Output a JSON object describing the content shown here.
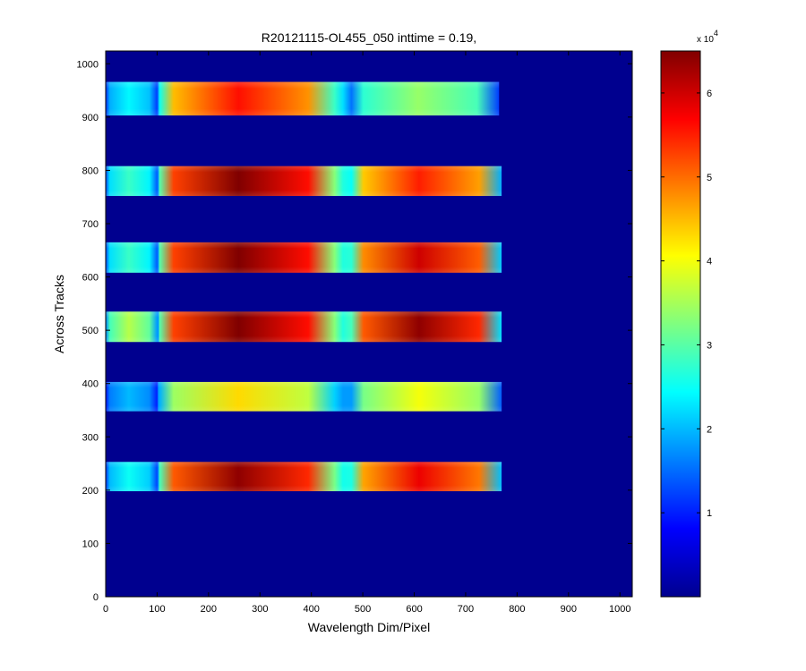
{
  "chart_data": {
    "type": "heatmap",
    "title": "R20121115-OL455_050 inttime = 0.19,",
    "xlabel": "Wavelength Dim/Pixel",
    "ylabel": "Across Tracks",
    "xlim": [
      0,
      1024
    ],
    "ylim": [
      0,
      1024
    ],
    "x_ticks": [
      "0",
      "100",
      "200",
      "300",
      "400",
      "500",
      "600",
      "700",
      "800",
      "900",
      "1000"
    ],
    "y_ticks": [
      "0",
      "100",
      "200",
      "300",
      "400",
      "500",
      "600",
      "700",
      "800",
      "900",
      "1000"
    ],
    "colorbar": {
      "colormap": "jet",
      "range": [
        0,
        65000
      ],
      "ticks": [
        "1",
        "2",
        "3",
        "4",
        "5",
        "6"
      ],
      "exponent_base": "x 10",
      "exponent": "4"
    },
    "background_value": 0,
    "stripes": [
      {
        "y_range": [
          198,
          253
        ],
        "x_range": [
          0,
          770
        ],
        "segments": [
          {
            "x_range": [
              0,
              100
            ],
            "peak": 25000
          },
          {
            "x_range": [
              105,
              445
            ],
            "peak": 64000
          },
          {
            "x_range": [
              478,
              770
            ],
            "peak": 58000
          }
        ]
      },
      {
        "y_range": [
          348,
          403
        ],
        "x_range": [
          0,
          770
        ],
        "segments": [
          {
            "x_range": [
              0,
              100
            ],
            "peak": 20000
          },
          {
            "x_range": [
              105,
              445
            ],
            "peak": 43000
          },
          {
            "x_range": [
              478,
              770
            ],
            "peak": 40000
          }
        ]
      },
      {
        "y_range": [
          478,
          535
        ],
        "x_range": [
          0,
          770
        ],
        "segments": [
          {
            "x_range": [
              0,
              100
            ],
            "peak": 36000
          },
          {
            "x_range": [
              105,
              445
            ],
            "peak": 66000
          },
          {
            "x_range": [
              478,
              770
            ],
            "peak": 64000
          }
        ]
      },
      {
        "y_range": [
          608,
          665
        ],
        "x_range": [
          0,
          770
        ],
        "segments": [
          {
            "x_range": [
              0,
              100
            ],
            "peak": 28000
          },
          {
            "x_range": [
              105,
              445
            ],
            "peak": 66000
          },
          {
            "x_range": [
              478,
              770
            ],
            "peak": 60000
          }
        ]
      },
      {
        "y_range": [
          752,
          808
        ],
        "x_range": [
          0,
          770
        ],
        "segments": [
          {
            "x_range": [
              0,
              100
            ],
            "peak": 28000
          },
          {
            "x_range": [
              105,
              445
            ],
            "peak": 66000
          },
          {
            "x_range": [
              478,
              770
            ],
            "peak": 55000
          }
        ]
      },
      {
        "y_range": [
          903,
          966
        ],
        "x_range": [
          0,
          765
        ],
        "segments": [
          {
            "x_range": [
              0,
              100
            ],
            "peak": 24000
          },
          {
            "x_range": [
              105,
              445
            ],
            "peak": 56000
          },
          {
            "x_range": [
              478,
              765
            ],
            "peak": 34000
          }
        ]
      }
    ]
  }
}
